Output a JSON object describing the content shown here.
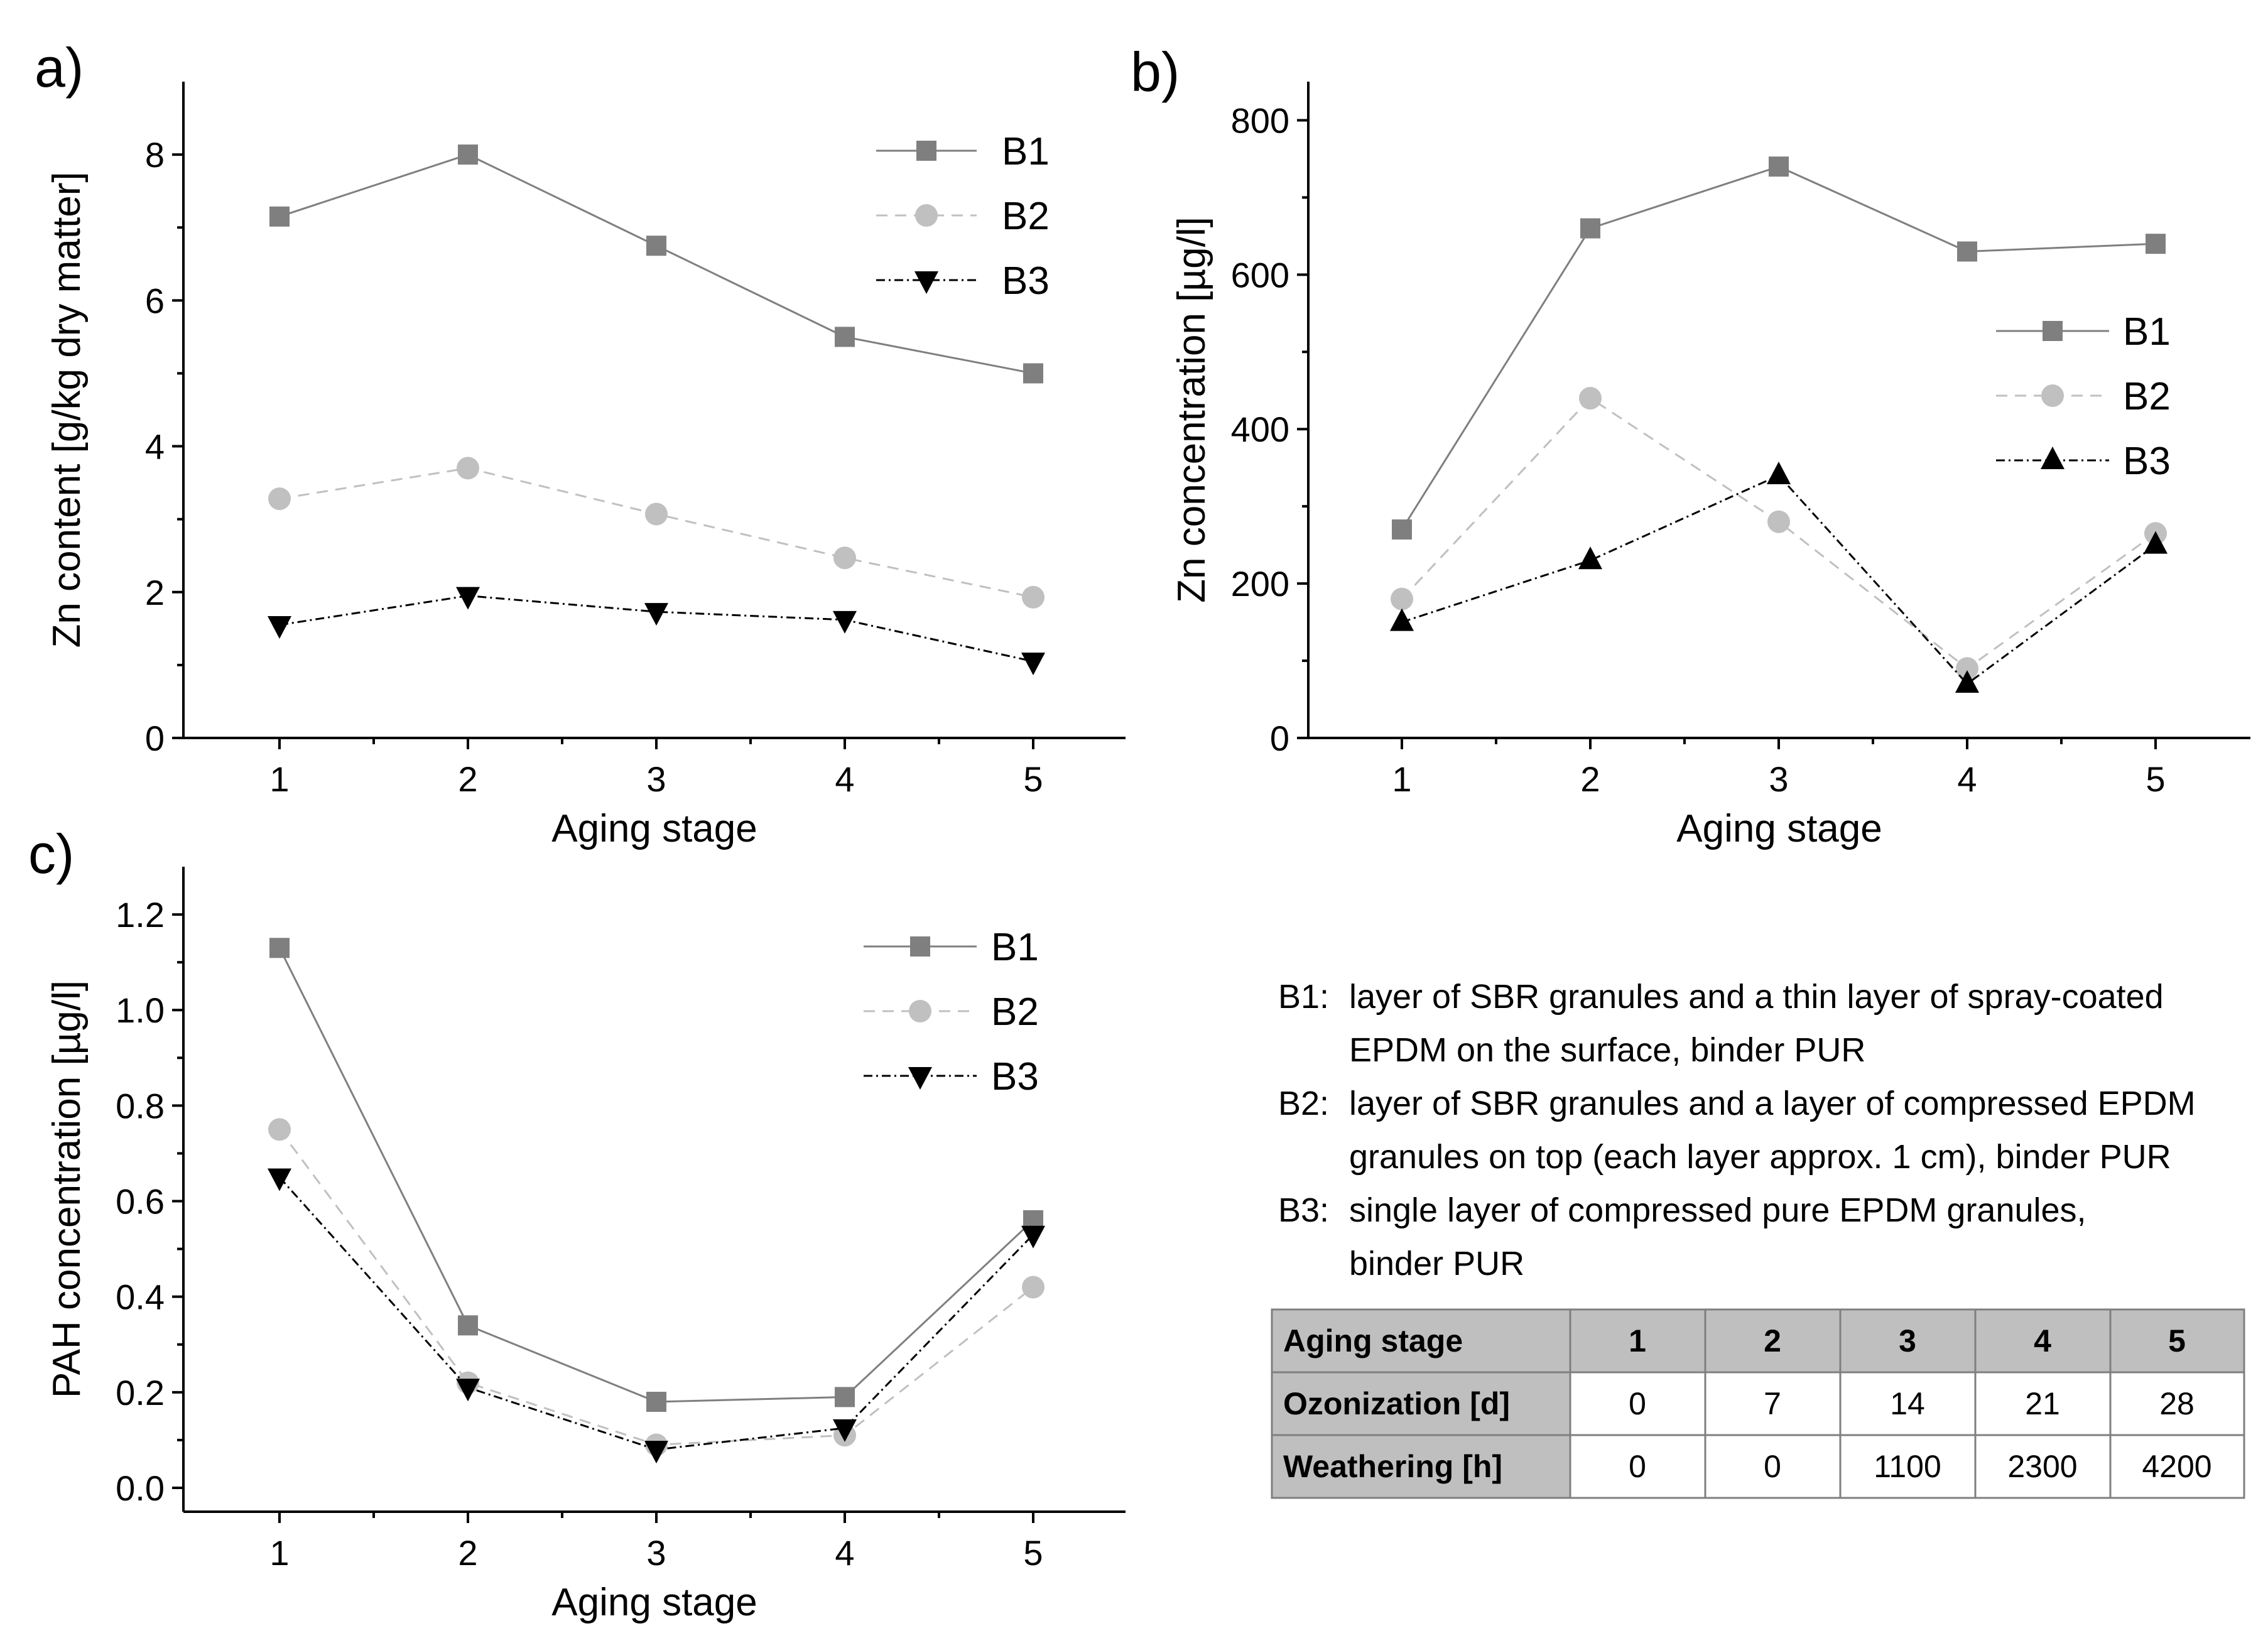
{
  "chart_data": [
    {
      "id": "a",
      "panel_label": "a)",
      "type": "line",
      "xlabel": "Aging stage",
      "ylabel": "Zn content [g/kg dry matter]",
      "x": [
        1,
        2,
        3,
        4,
        5
      ],
      "xticks": [
        "1",
        "2",
        "3",
        "4",
        "5"
      ],
      "ylim": [
        0,
        9
      ],
      "yticks": [
        0,
        2,
        4,
        6,
        8
      ],
      "ytick_labels": [
        "0",
        "2",
        "4",
        "6",
        "8"
      ],
      "legend_position": "top-right",
      "series": [
        {
          "name": "B1",
          "values": [
            7.15,
            8.0,
            6.75,
            5.5,
            5.0
          ],
          "color": "#7f7f7f",
          "marker": "square",
          "dash": "solid"
        },
        {
          "name": "B2",
          "values": [
            3.28,
            3.7,
            3.07,
            2.47,
            1.93
          ],
          "color": "#c0c0c0",
          "marker": "circle",
          "dash": "dashed"
        },
        {
          "name": "B3",
          "values": [
            1.55,
            1.95,
            1.73,
            1.62,
            1.05
          ],
          "color": "#000000",
          "marker": "triangle-down",
          "dash": "dashdot"
        }
      ]
    },
    {
      "id": "b",
      "panel_label": "b)",
      "type": "line",
      "xlabel": "Aging stage",
      "ylabel": "Zn concentration [µg/l]",
      "x": [
        1,
        2,
        3,
        4,
        5
      ],
      "xticks": [
        "1",
        "2",
        "3",
        "4",
        "5"
      ],
      "ylim": [
        0,
        850
      ],
      "yticks": [
        0,
        200,
        400,
        600,
        800
      ],
      "ytick_labels": [
        "0",
        "200",
        "400",
        "600",
        "800"
      ],
      "legend_position": "right",
      "series": [
        {
          "name": "B1",
          "values": [
            270,
            660,
            740,
            630,
            640
          ],
          "color": "#7f7f7f",
          "marker": "square",
          "dash": "solid"
        },
        {
          "name": "B2",
          "values": [
            180,
            440,
            280,
            90,
            265
          ],
          "color": "#c0c0c0",
          "marker": "circle",
          "dash": "dashed"
        },
        {
          "name": "B3",
          "values": [
            150,
            230,
            340,
            70,
            250
          ],
          "color": "#000000",
          "marker": "triangle-up",
          "dash": "dashdot"
        }
      ]
    },
    {
      "id": "c",
      "panel_label": "c)",
      "type": "line",
      "xlabel": "Aging stage",
      "ylabel": "PAH concentration [µg/l]",
      "x": [
        1,
        2,
        3,
        4,
        5
      ],
      "xticks": [
        "1",
        "2",
        "3",
        "4",
        "5"
      ],
      "ylim": [
        -0.05,
        1.3
      ],
      "yticks": [
        0.0,
        0.2,
        0.4,
        0.6,
        0.8,
        1.0,
        1.2
      ],
      "ytick_labels": [
        "0.0",
        "0.2",
        "0.4",
        "0.6",
        "0.8",
        "1.0",
        "1.2"
      ],
      "legend_position": "top-right",
      "series": [
        {
          "name": "B1",
          "values": [
            1.13,
            0.34,
            0.18,
            0.19,
            0.56
          ],
          "color": "#7f7f7f",
          "marker": "square",
          "dash": "solid"
        },
        {
          "name": "B2",
          "values": [
            0.75,
            0.22,
            0.09,
            0.11,
            0.42
          ],
          "color": "#c0c0c0",
          "marker": "circle",
          "dash": "dashed"
        },
        {
          "name": "B3",
          "values": [
            0.65,
            0.21,
            0.08,
            0.125,
            0.53
          ],
          "color": "#000000",
          "marker": "triangle-down",
          "dash": "dashdot"
        }
      ]
    }
  ],
  "descriptions": [
    {
      "code": "B1:",
      "lines": [
        "layer of SBR granules and a thin layer of spray-coated",
        "EPDM on the surface, binder PUR"
      ]
    },
    {
      "code": "B2:",
      "lines": [
        "layer of SBR granules and a layer of compressed EPDM",
        "granules on top (each layer approx. 1 cm), binder PUR"
      ]
    },
    {
      "code": "B3:",
      "lines": [
        "single layer of compressed pure EPDM granules,",
        "binder PUR"
      ]
    }
  ],
  "table": {
    "header": [
      "Aging stage",
      "1",
      "2",
      "3",
      "4",
      "5"
    ],
    "rows": [
      [
        "Ozonization [d]",
        "0",
        "7",
        "14",
        "21",
        "28"
      ],
      [
        "Weathering [h]",
        "0",
        "0",
        "1100",
        "2300",
        "4200"
      ]
    ]
  },
  "colors": {
    "b1": "#7f7f7f",
    "b2": "#c0c0c0",
    "b3": "#000000",
    "table_header_fill": "#bfbfbf",
    "table_label_fill": "#bfbfbf",
    "table_border": "#7f7f7f"
  }
}
